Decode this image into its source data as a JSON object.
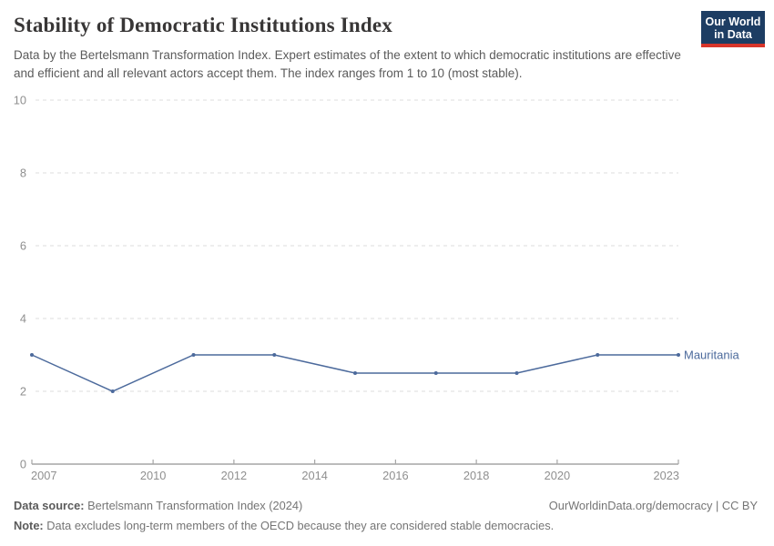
{
  "header": {
    "title": "Stability of Democratic Institutions Index",
    "subtitle": "Data by the Bertelsmann Transformation Index. Expert estimates of the extent to which democratic institutions are effective and efficient and all relevant actors accept them. The index ranges from 1 to 10 (most stable).",
    "logo": {
      "line1": "Our World",
      "line2": "in Data",
      "bg_color": "#1d3d63",
      "stripe_color": "#d8352a"
    }
  },
  "chart_data": {
    "type": "line",
    "title": "Stability of Democratic Institutions Index",
    "xlabel": "",
    "ylabel": "",
    "xlim": [
      2007,
      2023
    ],
    "ylim": [
      0,
      10
    ],
    "x_ticks": [
      2007,
      2010,
      2012,
      2014,
      2016,
      2018,
      2020,
      2023
    ],
    "y_ticks": [
      0,
      2,
      4,
      6,
      8,
      10
    ],
    "grid": "horizontal-dashed",
    "grid_color": "#dedede",
    "axis_color": "#a5a5a5",
    "tick_label_color": "#8f8f8f",
    "legend_position": "end-of-line-label",
    "series": [
      {
        "name": "Mauritania",
        "color": "#4c6a9c",
        "x": [
          2007,
          2009,
          2011,
          2013,
          2015,
          2017,
          2019,
          2021,
          2023
        ],
        "values": [
          3,
          2,
          3,
          3,
          2.5,
          2.5,
          2.5,
          3,
          3
        ]
      }
    ]
  },
  "footer": {
    "source_label": "Data source:",
    "source_value": "Bertelsmann Transformation Index (2024)",
    "attribution": "OurWorldinData.org/democracy | CC BY",
    "note_label": "Note:",
    "note_value": "Data excludes long-term members of the OECD because they are considered stable democracies."
  }
}
